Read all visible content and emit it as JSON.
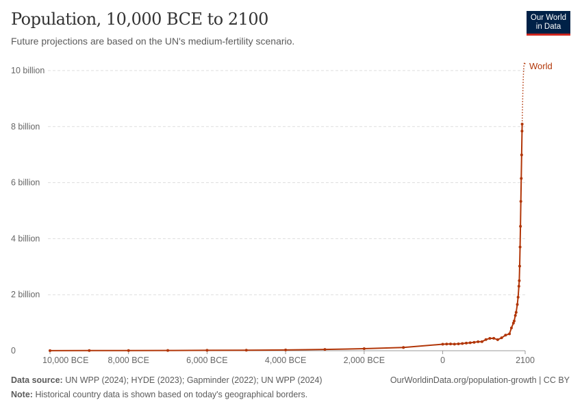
{
  "header": {
    "title": "Population, 10,000 BCE to 2100",
    "subtitle": "Future projections are based on the UN's medium-fertility scenario.",
    "logo": "Our World in Data"
  },
  "footer": {
    "source_label": "Data source:",
    "source": "UN WPP (2024); HYDE (2023); Gapminder (2022); UN WPP (2024)",
    "url": "OurWorldinData.org/population-growth | CC BY",
    "note_label": "Note:",
    "note": "Historical country data is shown based on today's geographical borders."
  },
  "colors": {
    "series": "#b13507",
    "grid": "#dddddd",
    "logo_bg": "#002147",
    "logo_accent": "#ce261e"
  },
  "chart_data": {
    "type": "line",
    "title": "Population, 10,000 BCE to 2100",
    "xlim": [
      -10000,
      2100
    ],
    "ylim": [
      0,
      10000000000
    ],
    "grid": "horizontal dashed",
    "legend": "inline-right",
    "xticks": [
      {
        "value": -10000,
        "label": "10,000 BCE"
      },
      {
        "value": -8000,
        "label": "8,000 BCE"
      },
      {
        "value": -6000,
        "label": "6,000 BCE"
      },
      {
        "value": -4000,
        "label": "4,000 BCE"
      },
      {
        "value": -2000,
        "label": "2,000 BCE"
      },
      {
        "value": 0,
        "label": "0"
      },
      {
        "value": 2100,
        "label": "2100"
      }
    ],
    "yticks": [
      {
        "value": 0,
        "label": "0"
      },
      {
        "value": 2000000000,
        "label": "2 billion"
      },
      {
        "value": 4000000000,
        "label": "4 billion"
      },
      {
        "value": 6000000000,
        "label": "6 billion"
      },
      {
        "value": 8000000000,
        "label": "8 billion"
      },
      {
        "value": 10000000000,
        "label": "10 billion"
      }
    ],
    "series": [
      {
        "name": "World",
        "historical": [
          [
            -10000,
            4400000.0
          ],
          [
            -9000,
            5600000.0
          ],
          [
            -8000,
            7200000.0
          ],
          [
            -7000,
            9600000.0
          ],
          [
            -6000,
            14000000.0
          ],
          [
            -5000,
            19000000.0
          ],
          [
            -4000,
            28000000.0
          ],
          [
            -3000,
            45000000.0
          ],
          [
            -2000,
            72000000.0
          ],
          [
            -1000,
            115000000.0
          ],
          [
            0,
            232000000.0
          ],
          [
            100,
            238000000.0
          ],
          [
            200,
            242000000.0
          ],
          [
            300,
            235000000.0
          ],
          [
            400,
            246000000.0
          ],
          [
            500,
            258000000.0
          ],
          [
            600,
            272000000.0
          ],
          [
            700,
            285000000.0
          ],
          [
            800,
            301000000.0
          ],
          [
            900,
            320000000.0
          ],
          [
            1000,
            323000000.0
          ],
          [
            1100,
            398000000.0
          ],
          [
            1200,
            441000000.0
          ],
          [
            1300,
            444000000.0
          ],
          [
            1400,
            393000000.0
          ],
          [
            1500,
            461000000.0
          ],
          [
            1600,
            555000000.0
          ],
          [
            1700,
            603000000.0
          ],
          [
            1750,
            814000000.0
          ],
          [
            1800,
            985000000.0
          ],
          [
            1820,
            1060000000.0
          ],
          [
            1850,
            1260000000.0
          ],
          [
            1870,
            1370000000.0
          ],
          [
            1900,
            1650000000.0
          ],
          [
            1920,
            1910000000.0
          ],
          [
            1940,
            2300000000.0
          ],
          [
            1950,
            2500000000.0
          ],
          [
            1960,
            3020000000.0
          ],
          [
            1970,
            3700000000.0
          ],
          [
            1980,
            4440000000.0
          ],
          [
            1990,
            5330000000.0
          ],
          [
            2000,
            6150000000.0
          ],
          [
            2010,
            6990000000.0
          ],
          [
            2020,
            7840000000.0
          ],
          [
            2023,
            8090000000.0
          ]
        ],
        "projection": [
          [
            2023,
            8090000000.0
          ],
          [
            2030,
            8550000000.0
          ],
          [
            2040,
            9190000000.0
          ],
          [
            2050,
            9660000000.0
          ],
          [
            2060,
            10000000000.0
          ],
          [
            2070,
            10200000000.0
          ],
          [
            2080,
            10290000000.0
          ],
          [
            2084,
            10300000000.0
          ],
          [
            2090,
            10290000000.0
          ],
          [
            2100,
            10180000000.0
          ]
        ]
      }
    ]
  }
}
